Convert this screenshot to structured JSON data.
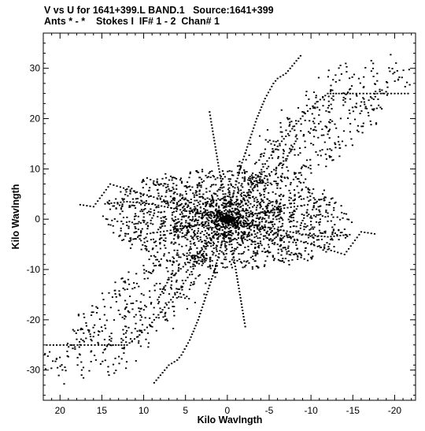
{
  "header": {
    "line1": "V vs U for 1641+399.L BAND.1   Source:1641+399",
    "line2": "Ants * - *    Stokes I  IF# 1 - 2  Chan# 1"
  },
  "chart_data": {
    "type": "scatter",
    "title": "V vs U for 1641+399.L BAND.1   Source:1641+399",
    "subtitle": "Ants * - *    Stokes I  IF# 1 - 2  Chan# 1",
    "xlabel": "Kilo Wavlngth",
    "ylabel": "Kilo Wavlngth",
    "xlim": [
      22,
      -22.5
    ],
    "ylim": [
      -36,
      37
    ],
    "x_reversed": true,
    "xticks": [
      20,
      15,
      10,
      5,
      0,
      -5,
      -10,
      -15,
      -20
    ],
    "xtick_labels": [
      "20",
      "15",
      "10",
      "5",
      "0",
      "-5",
      "-10",
      "-15",
      "-20"
    ],
    "yticks": [
      30,
      20,
      10,
      0,
      -10,
      -20,
      -30
    ],
    "ytick_labels": [
      "30",
      "20",
      "10",
      "0",
      "-10",
      "-20",
      "-30"
    ],
    "grid": false,
    "marker_color": "#000000",
    "points_description": "uv-coverage tracks, point-symmetric through the origin",
    "arms": [
      {
        "u": [
          0,
          -1.5,
          -3,
          -4.5,
          -6,
          -7.5,
          -9,
          -10.5,
          -12,
          -13,
          -14,
          -15,
          -17.5,
          -20,
          -22
        ],
        "v": [
          0,
          3,
          7,
          11,
          14.5,
          17.5,
          20.5,
          23,
          25,
          25,
          25,
          25,
          25,
          25,
          25
        ]
      },
      {
        "u": [
          0,
          -0.7,
          -1.5,
          -2.5,
          -3.5,
          -4.5,
          -5.5,
          -6,
          -7,
          -8,
          -9
        ],
        "v": [
          0,
          5,
          10,
          15,
          20,
          24,
          27,
          28,
          29,
          31,
          33
        ]
      },
      {
        "u": [
          0,
          1.5,
          3,
          5,
          7,
          8,
          8.5
        ],
        "v": [
          0,
          -3,
          -6,
          -9,
          -12,
          -15,
          -16.5
        ]
      },
      {
        "u": [
          0,
          -2,
          -4,
          -6,
          -8,
          -10,
          -12,
          -14,
          -16,
          -18
        ],
        "v": [
          0,
          -1,
          -2,
          -3,
          -4,
          -5,
          -6,
          -7,
          -2.5,
          -3
        ]
      },
      {
        "u": [
          0,
          -3,
          -6,
          -8,
          -10
        ],
        "v": [
          0,
          1,
          2,
          2.5,
          3
        ]
      },
      {
        "u": [
          0,
          2,
          4,
          6,
          8,
          10
        ],
        "v": [
          0,
          1.5,
          3,
          5,
          7,
          8.5
        ]
      },
      {
        "u": [
          0,
          3,
          6,
          9,
          12,
          15
        ],
        "v": [
          0,
          1,
          2,
          3,
          3.5,
          3
        ]
      },
      {
        "u": [
          0,
          -1,
          -2,
          -3,
          -4
        ],
        "v": [
          0,
          -1.5,
          -3,
          -4.5,
          -6
        ]
      },
      {
        "u": [
          0,
          0.5,
          1,
          1.5,
          2,
          2.2
        ],
        "v": [
          0,
          5,
          10,
          15,
          20,
          22
        ]
      }
    ]
  }
}
